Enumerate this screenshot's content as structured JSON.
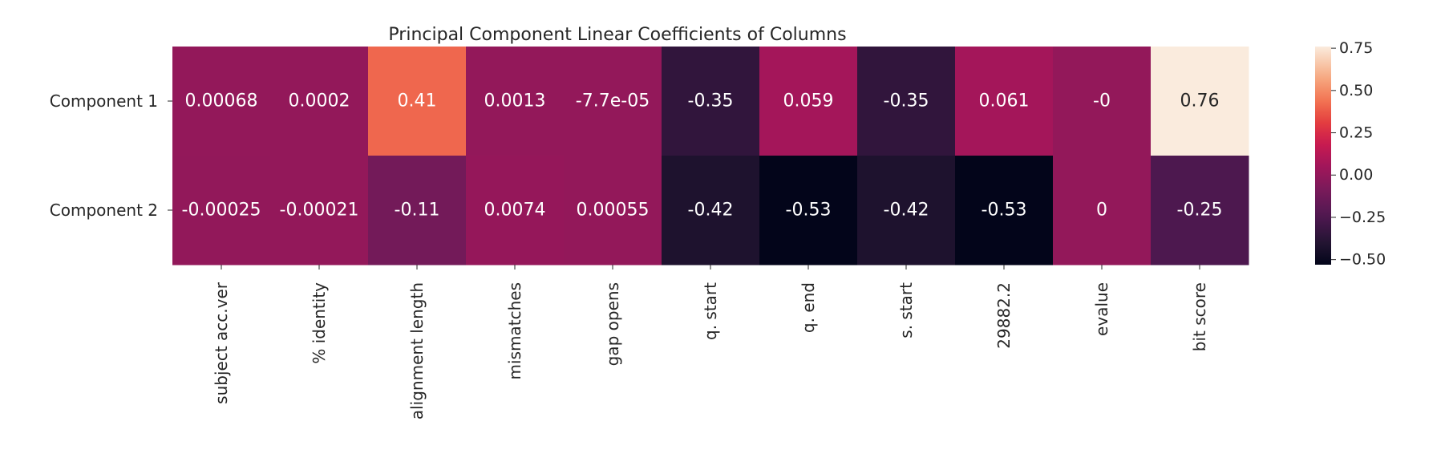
{
  "chart_data": {
    "type": "heatmap",
    "title": "Principal Component Linear Coefficients of Columns",
    "rows": [
      "Component 1",
      "Component 2"
    ],
    "columns": [
      "subject acc.ver",
      "% identity",
      "alignment length",
      "mismatches",
      "gap opens",
      "q. start",
      "q. end",
      "s. start",
      "29882.2",
      "evalue",
      "bit score"
    ],
    "values": [
      [
        0.00068,
        0.0002,
        0.41,
        0.0013,
        -7.7e-05,
        -0.35,
        0.059,
        -0.35,
        0.061,
        0,
        0.76
      ],
      [
        -0.00025,
        -0.00021,
        -0.11,
        0.0074,
        0.00055,
        -0.42,
        -0.53,
        -0.42,
        -0.53,
        0,
        -0.25
      ]
    ],
    "labels": [
      [
        "0.00068",
        "0.0002",
        "0.41",
        "0.0013",
        "-7.7e-05",
        "-0.35",
        "0.059",
        "-0.35",
        "0.061",
        "-0",
        "0.76"
      ],
      [
        "-0.00025",
        "-0.00021",
        "-0.11",
        "0.0074",
        "0.00055",
        "-0.42",
        "-0.53",
        "-0.42",
        "-0.53",
        "0",
        "-0.25"
      ]
    ],
    "colormap": "rocket",
    "vmin": -0.53,
    "vmax": 0.76,
    "colorbar": {
      "ticks": [
        0.75,
        0.5,
        0.25,
        0.0,
        -0.25,
        -0.5
      ],
      "tick_labels": [
        "0.75",
        "0.50",
        "0.25",
        "0.00",
        "−0.25",
        "−0.50"
      ]
    },
    "grid": false,
    "legend": "right"
  }
}
